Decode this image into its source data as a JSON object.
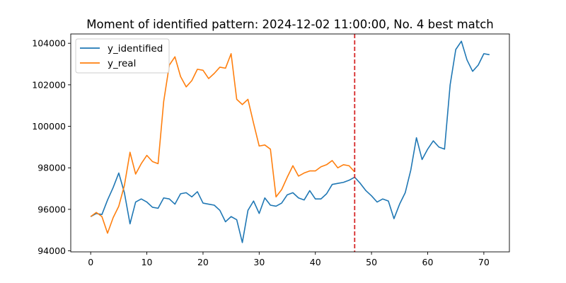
{
  "chart_data": {
    "type": "line",
    "title": "Moment of identified pattern: 2024-12-02 11:00:00, No. 4 best match",
    "xlabel": "",
    "ylabel": "",
    "xlim": [
      -3.55,
      74.55
    ],
    "ylim": [
      93950,
      104450
    ],
    "x_ticks": [
      0,
      10,
      20,
      30,
      40,
      50,
      60,
      70
    ],
    "y_ticks": [
      94000,
      96000,
      98000,
      100000,
      102000,
      104000
    ],
    "grid": false,
    "legend_position": "top-left",
    "vline": {
      "x": 47,
      "color": "#d62728",
      "style": "dashed"
    },
    "series": [
      {
        "name": "y_identified",
        "color": "#1f77b4",
        "x_start": 0,
        "values": [
          95650,
          95800,
          95750,
          96450,
          97050,
          97750,
          96800,
          95300,
          96350,
          96500,
          96350,
          96100,
          96050,
          96550,
          96500,
          96250,
          96750,
          96800,
          96600,
          96850,
          96300,
          96250,
          96200,
          95950,
          95400,
          95650,
          95500,
          94400,
          95950,
          96400,
          95800,
          96550,
          96200,
          96150,
          96300,
          96700,
          96800,
          96550,
          96450,
          96900,
          96500,
          96500,
          96750,
          97200,
          97250,
          97300,
          97400,
          97550,
          97250,
          96900,
          96650,
          96350,
          96500,
          96400,
          95550,
          96250,
          96800,
          97900,
          99450,
          98400,
          98900,
          99300,
          99000,
          98900,
          102000,
          103700,
          104100,
          103200,
          102650,
          102950,
          103500,
          103450
        ]
      },
      {
        "name": "y_real",
        "color": "#ff7f0e",
        "x_start": 0,
        "values": [
          95650,
          95850,
          95650,
          94850,
          95600,
          96150,
          97150,
          98750,
          97700,
          98200,
          98600,
          98300,
          98200,
          101200,
          102950,
          103350,
          102400,
          101900,
          102200,
          102750,
          102700,
          102300,
          102550,
          102850,
          102800,
          103500,
          101300,
          101050,
          101300,
          100150,
          99050,
          99100,
          98900,
          96600,
          96950,
          97550,
          98100,
          97600,
          97750,
          97850,
          97850,
          98050,
          98150,
          98350,
          98000,
          98150,
          98100,
          97800
        ]
      }
    ]
  }
}
